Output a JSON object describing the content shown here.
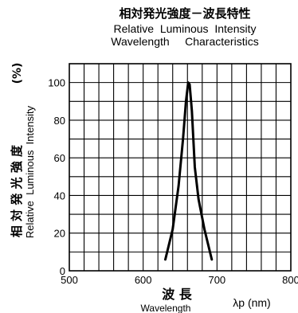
{
  "chart_data": {
    "type": "line",
    "title_jp": "相対発光強度－波長特性",
    "title_en_line1": "Relative  Luminous  Intensity",
    "title_en_line2": "Wavelength     Characteristics",
    "ylabel_jp": "相 対 発 光 強 度",
    "ylabel_unit": "(%)",
    "ylabel_en": "Relative  Luminous  Intensity",
    "xlabel_jp": "波 長",
    "xlabel_en": "Wavelength",
    "xlabel_unit": "λp (nm)",
    "xlim": [
      500,
      800
    ],
    "ylim": [
      0,
      110
    ],
    "x_ticks": [
      500,
      600,
      700,
      800
    ],
    "y_ticks": [
      0,
      20,
      40,
      60,
      80,
      100
    ],
    "x_tick_labels": [
      "500",
      "600",
      "700",
      "800"
    ],
    "y_tick_labels": [
      "0",
      "20",
      "40",
      "60",
      "80",
      "100"
    ],
    "grid": true,
    "series": [
      {
        "x": [
          630,
          640,
          648,
          654,
          658,
          661,
          663,
          666,
          670,
          675,
          683,
          693
        ],
        "y": [
          6,
          22,
          45,
          70,
          90,
          100,
          99,
          85,
          55,
          38,
          22,
          6
        ]
      }
    ]
  }
}
